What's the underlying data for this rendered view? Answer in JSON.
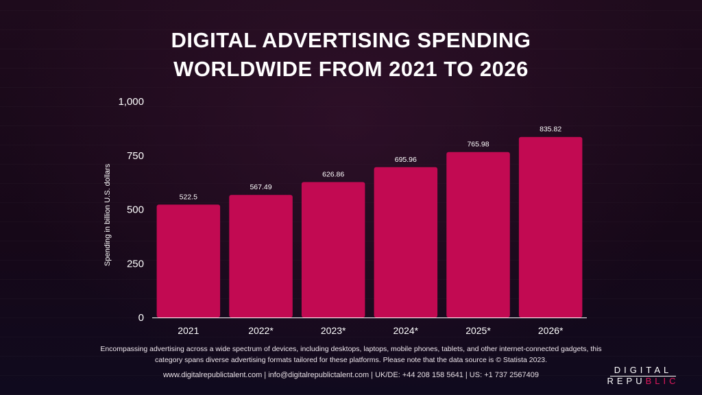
{
  "title_lines": [
    "DIGITAL ADVERTISING SPENDING",
    "WORLDWIDE FROM 2021 TO 2026"
  ],
  "chart_data": {
    "type": "bar",
    "title": "DIGITAL ADVERTISING SPENDING WORLDWIDE FROM 2021 TO 2026",
    "categories": [
      "2021",
      "2022*",
      "2023*",
      "2024*",
      "2025*",
      "2026*"
    ],
    "values": [
      522.5,
      567.49,
      626.86,
      695.96,
      765.98,
      835.82
    ],
    "data_labels": [
      "522.5",
      "567.49",
      "626.86",
      "695.96",
      "765.98",
      "835.82"
    ],
    "ylabel": "Spending in billion U.S. dollars",
    "xlabel": "",
    "ylim": [
      0,
      1000
    ],
    "yticks": [
      0,
      250,
      500,
      750,
      1000
    ],
    "ytick_labels": [
      "0",
      "250",
      "500",
      "750",
      "1,000"
    ],
    "bar_color": "#c20a52",
    "grid": false,
    "legend": "none"
  },
  "footnote_lines": [
    "Encompassing advertising across a wide spectrum of devices, including desktops, laptops, mobile phones, tablets, and other internet-connected gadgets, this",
    "category spans diverse advertising formats tailored for these platforms. Please note that the data source is © Statista 2023."
  ],
  "contact": "www.digitalrepublictalent.com | info@digitalrepublictalent.com | UK/DE: +44 208 158 5641 | US: +1 737 2567409",
  "logo": {
    "top": "DIGITAL",
    "bottom_white": "REPU",
    "bottom_accent": "BLIC",
    "accent_color": "#e0195e"
  }
}
